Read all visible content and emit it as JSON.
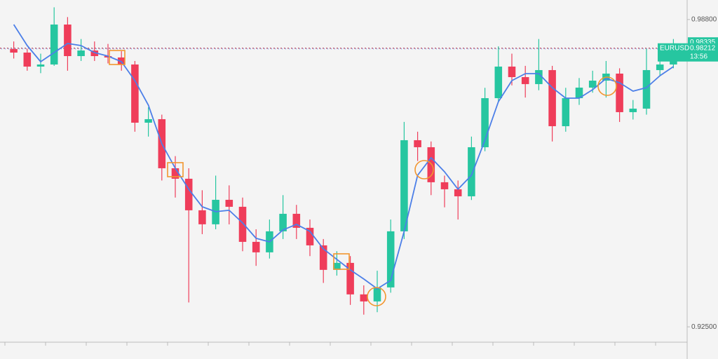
{
  "chart_data": {
    "type": "candlestick",
    "symbol": "EURUSD",
    "last_price": 0.98212,
    "high_price": 0.98335,
    "timer": "13:56",
    "ylim": [
      0.922,
      0.992
    ],
    "yticks": [
      {
        "value": 0.988,
        "label": "0.98800"
      },
      {
        "value": 0.925,
        "label": "0.92500"
      }
    ],
    "up_color": "#26c6a0",
    "down_color": "#ef3d5a",
    "ma_color": "#4c7fe8",
    "label_color": "#26c6a0",
    "open": [
      0.98194,
      0.98122,
      0.97835,
      0.97878,
      0.98697,
      0.9805,
      0.98165,
      0.9805,
      0.98022,
      0.97878,
      0.96685,
      0.96757,
      0.95751,
      0.95536,
      0.94889,
      0.94602,
      0.95104,
      0.94961,
      0.94242,
      0.94027,
      0.94458,
      0.94817,
      0.9453,
      0.9417,
      0.93668,
      0.93811,
      0.93165,
      0.93021,
      0.93308,
      0.94458,
      0.96326,
      0.96182,
      0.95464,
      0.9532,
      0.95176,
      0.96182,
      0.97188,
      0.97835,
      0.97619,
      0.97476,
      0.97763,
      0.96613,
      0.97188,
      0.97404,
      0.97547,
      0.97691,
      0.96901,
      0.96973,
      0.97763,
      0.97878
    ],
    "high": [
      0.9835,
      0.982,
      0.981,
      0.9905,
      0.9885,
      0.984,
      0.9835,
      0.983,
      0.9815,
      0.9795,
      0.97,
      0.9685,
      0.96,
      0.9575,
      0.953,
      0.956,
      0.954,
      0.9515,
      0.945,
      0.947,
      0.952,
      0.95,
      0.947,
      0.943,
      0.9405,
      0.9395,
      0.9335,
      0.9365,
      0.947,
      0.967,
      0.965,
      0.963,
      0.956,
      0.955,
      0.964,
      0.974,
      0.9825,
      0.981,
      0.9785,
      0.984,
      0.9785,
      0.974,
      0.976,
      0.9775,
      0.9795,
      0.978,
      0.9715,
      0.982,
      0.9815,
      0.984
    ],
    "low": [
      0.98,
      0.9775,
      0.977,
      0.9785,
      0.9775,
      0.9795,
      0.9795,
      0.979,
      0.9775,
      0.965,
      0.964,
      0.955,
      0.9515,
      0.93,
      0.944,
      0.945,
      0.946,
      0.9405,
      0.9375,
      0.939,
      0.943,
      0.943,
      0.9395,
      0.934,
      0.9355,
      0.9295,
      0.9275,
      0.928,
      0.932,
      0.943,
      0.959,
      0.952,
      0.9495,
      0.947,
      0.951,
      0.961,
      0.971,
      0.9745,
      0.972,
      0.9735,
      0.963,
      0.965,
      0.9705,
      0.973,
      0.972,
      0.967,
      0.9675,
      0.9685,
      0.9765,
      0.978
    ],
    "close": [
      0.98122,
      0.97835,
      0.97878,
      0.98697,
      0.9805,
      0.98165,
      0.9805,
      0.98022,
      0.97878,
      0.96685,
      0.96757,
      0.95751,
      0.95536,
      0.94889,
      0.94602,
      0.95104,
      0.94961,
      0.94242,
      0.94027,
      0.94458,
      0.94817,
      0.9453,
      0.9417,
      0.93668,
      0.93811,
      0.93165,
      0.93021,
      0.93308,
      0.94458,
      0.96326,
      0.96182,
      0.95464,
      0.9532,
      0.95176,
      0.96182,
      0.97188,
      0.97835,
      0.97619,
      0.97476,
      0.97763,
      0.96613,
      0.97188,
      0.97404,
      0.97547,
      0.97691,
      0.96901,
      0.96973,
      0.97763,
      0.97878,
      0.9805
    ],
    "ma": [
      0.98697,
      0.98266,
      0.97935,
      0.98122,
      0.98309,
      0.98266,
      0.98122,
      0.9805,
      0.97935,
      0.97547,
      0.97045,
      0.96254,
      0.95751,
      0.9532,
      0.94961,
      0.9486,
      0.94889,
      0.9463,
      0.94314,
      0.94242,
      0.94487,
      0.94602,
      0.94458,
      0.94099,
      0.93883,
      0.93668,
      0.93481,
      0.9328,
      0.93452,
      0.94458,
      0.95607,
      0.95967,
      0.95679,
      0.9532,
      0.95607,
      0.96326,
      0.97116,
      0.97547,
      0.97691,
      0.97691,
      0.97404,
      0.97188,
      0.97188,
      0.97361,
      0.97591,
      0.97504,
      0.97332,
      0.97404,
      0.97648,
      0.97835
    ]
  }
}
